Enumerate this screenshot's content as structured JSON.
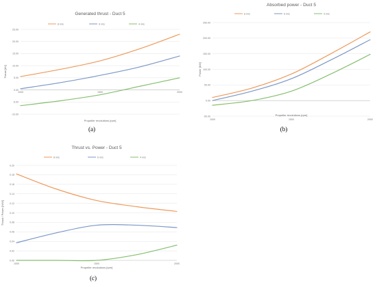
{
  "chart_data": [
    {
      "id": "a",
      "type": "line",
      "title": "Generated thrust - Duct 5",
      "xlabel": "Propeller revolutions [rpm]",
      "ylabel": "Thrust [kN]",
      "x": [
        1000,
        1250,
        1500,
        1750,
        2000
      ],
      "xticks": [
        "1000",
        "1500",
        "2000"
      ],
      "xtick_values": [
        1000,
        1500,
        2000
      ],
      "ylim": [
        -10,
        25
      ],
      "yticks": [
        "25.00",
        "20.00",
        "15.00",
        "10.00",
        "5.00",
        "0.00",
        "-5.00",
        "-10.00"
      ],
      "ytick_values": [
        25,
        20,
        15,
        10,
        5,
        0,
        -5,
        -10
      ],
      "grid": true,
      "legend": "top",
      "series": [
        {
          "name": "8 m/s",
          "color": "#ed9a5b",
          "values": [
            5.5,
            8.5,
            12.0,
            17.0,
            23.0
          ]
        },
        {
          "name": "6 m/s",
          "color": "#7b97c6",
          "values": [
            0.5,
            3.0,
            6.0,
            9.5,
            14.0
          ]
        },
        {
          "name": "4 m/s",
          "color": "#86bf6f",
          "values": [
            -6.5,
            -4.5,
            -2.0,
            1.5,
            5.0
          ]
        }
      ]
    },
    {
      "id": "b",
      "type": "line",
      "title": "Absorbed power - Duct 5",
      "xlabel": "Propeller revolutions [rpm]",
      "ylabel": "Power [kW]",
      "x": [
        1000,
        1250,
        1500,
        1750,
        2000
      ],
      "xticks": [
        "1000",
        "1500",
        "2000"
      ],
      "xtick_values": [
        1000,
        1500,
        2000
      ],
      "ylim": [
        -50,
        250
      ],
      "yticks": [
        "250.00",
        "200.00",
        "150.00",
        "100.00",
        "50.00",
        "0.00",
        "-50.00"
      ],
      "ytick_values": [
        250,
        200,
        150,
        100,
        50,
        0,
        -50
      ],
      "grid": true,
      "legend": "top",
      "series": [
        {
          "name": "8 m/s",
          "color": "#ed9a5b",
          "values": [
            10,
            40,
            85,
            150,
            220
          ]
        },
        {
          "name": "6 m/s",
          "color": "#7b97c6",
          "values": [
            0,
            30,
            70,
            130,
            195
          ]
        },
        {
          "name": "4 m/s",
          "color": "#86bf6f",
          "values": [
            -15,
            0,
            30,
            85,
            148
          ]
        }
      ]
    },
    {
      "id": "c",
      "type": "line",
      "title": "Thrust vs. Power - Duct 5",
      "xlabel": "Propeller revolutions [rpm]",
      "ylabel": "Thrust / Power [N/W]",
      "x": [
        1000,
        1250,
        1500,
        1750,
        2000
      ],
      "xticks": [
        "1000",
        "1500",
        "2000"
      ],
      "xtick_values": [
        1000,
        1500,
        2000
      ],
      "ylim": [
        0,
        0.2
      ],
      "yticks": [
        "0.20",
        "0.18",
        "0.16",
        "0.14",
        "0.12",
        "0.10",
        "0.08",
        "0.06",
        "0.04",
        "0.02",
        "0.00"
      ],
      "ytick_values": [
        0.2,
        0.18,
        0.16,
        0.14,
        0.12,
        0.1,
        0.08,
        0.06,
        0.04,
        0.02,
        0
      ],
      "grid": true,
      "legend": "top",
      "series": [
        {
          "name": "8 m/s",
          "color": "#ed9a5b",
          "values": [
            0.182,
            0.15,
            0.126,
            0.113,
            0.103
          ]
        },
        {
          "name": "6 m/s",
          "color": "#7b97c6",
          "values": [
            0.037,
            0.058,
            0.074,
            0.074,
            0.069
          ]
        },
        {
          "name": "4 m/s",
          "color": "#86bf6f",
          "values": [
            0.0,
            0.0,
            0.0,
            0.012,
            0.032
          ]
        }
      ]
    }
  ],
  "captions": {
    "a": "(a)",
    "b": "(b)",
    "c": "(c)"
  }
}
